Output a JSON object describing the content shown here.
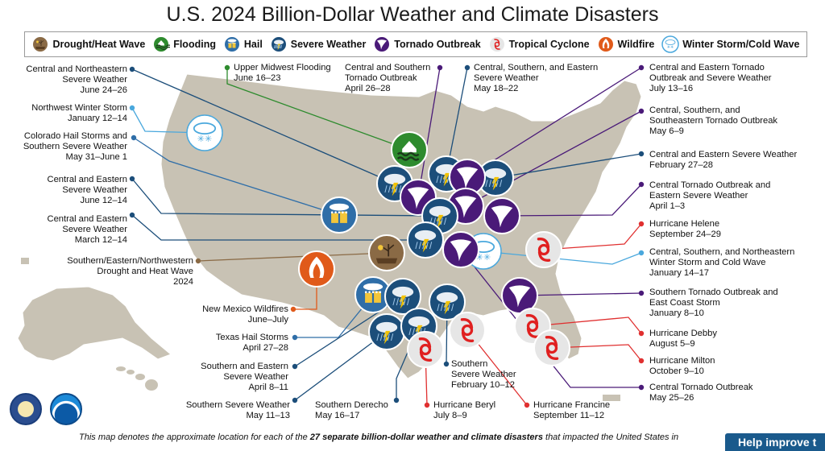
{
  "title": "U.S. 2024 Billion-Dollar Weather and Climate Disasters",
  "legend": [
    {
      "name": "Drought/Heat Wave",
      "icon": "drought-icon",
      "color": "#8a6a45"
    },
    {
      "name": "Flooding",
      "icon": "flood-icon",
      "color": "#2e8b2e"
    },
    {
      "name": "Hail",
      "icon": "hail-icon",
      "color": "#2f6ea8"
    },
    {
      "name": "Severe Weather",
      "icon": "severe-weather-icon",
      "color": "#1c4e7a"
    },
    {
      "name": "Tornado Outbreak",
      "icon": "tornado-icon",
      "color": "#4a1a78"
    },
    {
      "name": "Tropical Cyclone",
      "icon": "tropical-cyclone-icon",
      "color": "#e03030"
    },
    {
      "name": "Wildfire",
      "icon": "wildfire-icon",
      "color": "#e05a1a"
    },
    {
      "name": "Winter Storm/Cold Wave",
      "icon": "winter-storm-icon",
      "color": "#4aa8dd"
    }
  ],
  "events": [
    {
      "name": "Central and Northeastern Severe Weather",
      "date": "June 24–26",
      "type": "Severe Weather"
    },
    {
      "name": "Northwest Winter Storm",
      "date": "January 12–14",
      "type": "Winter Storm/Cold Wave"
    },
    {
      "name": "Colorado Hail Storms and Southern Severe Weather",
      "date": "May 31–June 1",
      "type": "Hail"
    },
    {
      "name": "Central and Eastern Severe Weather",
      "date": "June 12–14",
      "type": "Severe Weather"
    },
    {
      "name": "Central and Eastern Severe Weather",
      "date": "March 12–14",
      "type": "Severe Weather"
    },
    {
      "name": "Southern/Eastern/Northwestern Drought and Heat Wave",
      "date": "2024",
      "type": "Drought/Heat Wave"
    },
    {
      "name": "New Mexico Wildfires",
      "date": "June–July",
      "type": "Wildfire"
    },
    {
      "name": "Texas Hail Storms",
      "date": "April 27–28",
      "type": "Hail"
    },
    {
      "name": "Southern and Eastern Severe Weather",
      "date": "April 8–11",
      "type": "Severe Weather"
    },
    {
      "name": "Southern Severe Weather",
      "date": "May 11–13",
      "type": "Severe Weather"
    },
    {
      "name": "Southern Derecho",
      "date": "May 16–17",
      "type": "Severe Weather"
    },
    {
      "name": "Hurricane Beryl",
      "date": "July 8–9",
      "type": "Tropical Cyclone"
    },
    {
      "name": "Southern Severe Weather",
      "date": "February 10–12",
      "type": "Severe Weather"
    },
    {
      "name": "Hurricane Francine",
      "date": "September 11–12",
      "type": "Tropical Cyclone"
    },
    {
      "name": "Upper Midwest Flooding",
      "date": "June 16–23",
      "type": "Flooding"
    },
    {
      "name": "Central and Southern Tornado Outbreak",
      "date": "April 26–28",
      "type": "Tornado Outbreak"
    },
    {
      "name": "Central, Southern, and Eastern Severe Weather",
      "date": "May 18–22",
      "type": "Severe Weather"
    },
    {
      "name": "Central and Eastern Tornado Outbreak and Severe Weather",
      "date": "July 13–16",
      "type": "Tornado Outbreak"
    },
    {
      "name": "Central, Southern, and Southeastern Tornado Outbreak",
      "date": "May 6–9",
      "type": "Tornado Outbreak"
    },
    {
      "name": "Central and Eastern Severe Weather",
      "date": "February 27–28",
      "type": "Severe Weather"
    },
    {
      "name": "Central Tornado Outbreak and Eastern Severe Weather",
      "date": "April 1–3",
      "type": "Tornado Outbreak"
    },
    {
      "name": "Hurricane Helene",
      "date": "September 24–29",
      "type": "Tropical Cyclone"
    },
    {
      "name": "Central, Southern, and Northeastern Winter Storm and Cold Wave",
      "date": "January 14–17",
      "type": "Winter Storm/Cold Wave"
    },
    {
      "name": "Southern Tornado Outbreak and East Coast Storm",
      "date": "January 8–10",
      "type": "Tornado Outbreak"
    },
    {
      "name": "Hurricane Debby",
      "date": "August 5–9",
      "type": "Tropical Cyclone"
    },
    {
      "name": "Hurricane Milton",
      "date": "October 9–10",
      "type": "Tropical Cyclone"
    },
    {
      "name": "Central Tornado Outbreak",
      "date": "May 25–26",
      "type": "Tornado Outbreak"
    }
  ],
  "labels": {
    "l_ne_sw": [
      "Central and Northeastern",
      "Severe Weather",
      "June 24–26"
    ],
    "l_nw_ws": [
      "Northwest Winter Storm",
      "January 12–14"
    ],
    "l_co_hail": [
      "Colorado Hail Storms and",
      "Southern Severe Weather",
      "May 31–June 1"
    ],
    "l_ce_jun": [
      "Central and Eastern",
      "Severe Weather",
      "June 12–14"
    ],
    "l_ce_mar": [
      "Central and Eastern",
      "Severe Weather",
      "March 12–14"
    ],
    "l_drought": [
      "Southern/Eastern/Northwestern",
      "Drought and Heat Wave",
      "2024"
    ],
    "l_nm_fire": [
      "New Mexico Wildfires",
      "June–July"
    ],
    "l_tx_hail": [
      "Texas Hail Storms",
      "April 27–28"
    ],
    "l_se_apr": [
      "Southern and Eastern",
      "Severe Weather",
      "April 8–11"
    ],
    "l_ss_may": [
      "Southern Severe Weather",
      "May 11–13"
    ],
    "l_derecho": [
      "Southern Derecho",
      "May 16–17"
    ],
    "l_beryl": [
      "Hurricane Beryl",
      "July 8–9"
    ],
    "l_ss_feb": [
      "Southern",
      "Severe Weather",
      "February 10–12"
    ],
    "l_francine": [
      "Hurricane Francine",
      "September 11–12"
    ],
    "l_flood": [
      "Upper Midwest Flooding",
      "June 16–23"
    ],
    "l_cs_torn": [
      "Central and Southern",
      "Tornado Outbreak",
      "April 26–28"
    ],
    "l_cse_may": [
      "Central, Southern, and Eastern",
      "Severe Weather",
      "May 18–22"
    ],
    "l_ce_torn_jul": [
      "Central and Eastern Tornado",
      "Outbreak and Severe Weather",
      "July 13–16"
    ],
    "l_css_torn": [
      "Central, Southern, and",
      "Southeastern Tornado Outbreak",
      "May 6–9"
    ],
    "l_ce_feb": [
      "Central and Eastern Severe Weather",
      "February 27–28"
    ],
    "l_ct_apr": [
      "Central Tornado Outbreak and",
      "Eastern Severe Weather",
      "April 1–3"
    ],
    "l_helene": [
      "Hurricane Helene",
      "September 24–29"
    ],
    "l_winter_jan": [
      "Central, Southern, and Northeastern",
      "Winter Storm and Cold Wave",
      "January 14–17"
    ],
    "l_st_jan": [
      "Southern Tornado Outbreak and",
      "East Coast Storm",
      "January 8–10"
    ],
    "l_debby": [
      "Hurricane Debby",
      "August 5–9"
    ],
    "l_milton": [
      "Hurricane Milton",
      "October 9–10"
    ],
    "l_ct_may": [
      "Central Tornado Outbreak",
      "May 25–26"
    ]
  },
  "footer": {
    "prefix": "This map denotes the approximate location for each of the ",
    "bold": "27 separate billion-dollar weather and climate disasters",
    "suffix": " that impacted the United States in"
  },
  "help_button": "Help improve t"
}
